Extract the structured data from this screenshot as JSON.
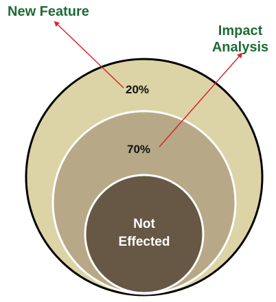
{
  "diagram": {
    "callouts": {
      "new_feature": "New Feature",
      "impact_line1": "Impact",
      "impact_line2": "Analysis"
    },
    "percentages": {
      "outer": "20%",
      "middle": "70%"
    },
    "center_label": {
      "line1": "Not",
      "line2": "Effected"
    },
    "colors": {
      "outer_ring": "#dcd3a6",
      "middle_ring": "#b7a987",
      "inner_circle": "#665845",
      "outline": "#000000",
      "arrow": "#d7262a",
      "callout_text": "#1e6b34"
    }
  }
}
